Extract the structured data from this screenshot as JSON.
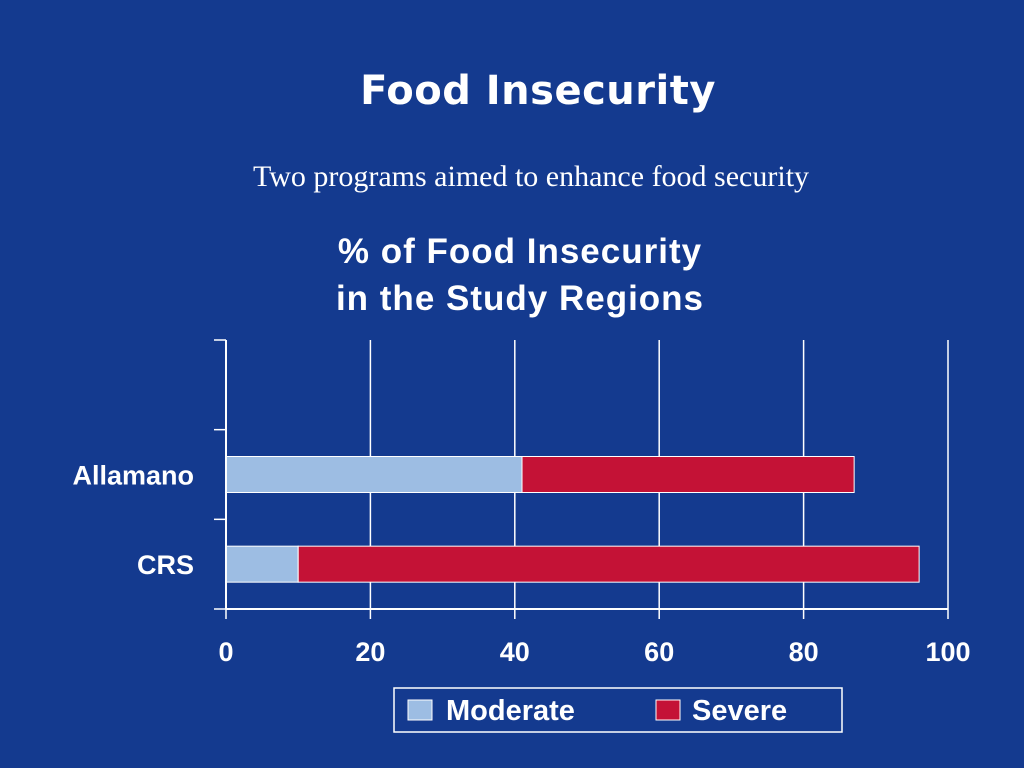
{
  "slide": {
    "title": "Food Insecurity",
    "subtitle": "Two programs aimed to enhance food security"
  },
  "colors": {
    "background": "#143a8f",
    "moderate": "#9dbde3",
    "severe": "#c41236",
    "text": "#ffffff"
  },
  "chart_data": {
    "type": "bar",
    "orientation": "horizontal",
    "stacked": true,
    "title_lines": [
      "% of Food Insecurity",
      "in the Study Regions"
    ],
    "categories": [
      "Allamano",
      "CRS"
    ],
    "series": [
      {
        "name": "Moderate",
        "values": [
          41,
          10
        ]
      },
      {
        "name": "Severe",
        "values": [
          46,
          86
        ]
      }
    ],
    "xlim": [
      0,
      100
    ],
    "xticks": [
      0,
      20,
      40,
      60,
      80,
      100
    ],
    "grid": true,
    "legend": "bottom"
  }
}
